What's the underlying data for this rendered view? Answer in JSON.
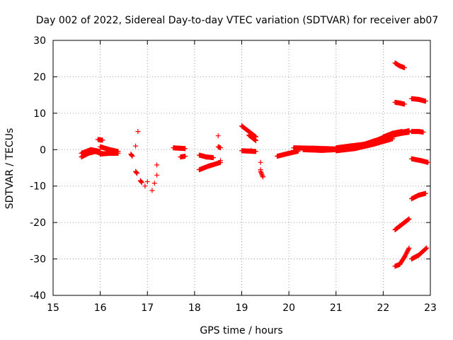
{
  "chart_data": {
    "type": "scatter",
    "title": "Day 002 of 2022, Sidereal Day-to-day VTEC variation (SDTVAR) for receiver ab07",
    "xlabel": "GPS time / hours",
    "ylabel": "SDTVAR / TECUs",
    "xlim": [
      15,
      23
    ],
    "ylim": [
      -40,
      30
    ],
    "xticks": [
      15,
      16,
      17,
      18,
      19,
      20,
      21,
      22,
      23
    ],
    "yticks": [
      -40,
      -30,
      -20,
      -10,
      0,
      10,
      20,
      30
    ],
    "grid": true,
    "marker": "+",
    "color": "#ff0000",
    "series": [
      {
        "name": "SDTVAR",
        "segments": [
          [
            [
              15.6,
              -2.0
            ],
            [
              15.75,
              -1.0
            ],
            [
              15.9,
              -0.5
            ],
            [
              16.0,
              -1.0
            ]
          ],
          [
            [
              15.6,
              -1.0
            ],
            [
              15.8,
              0.0
            ],
            [
              16.0,
              -0.5
            ]
          ],
          [
            [
              15.95,
              2.8
            ],
            [
              16.05,
              2.6
            ]
          ],
          [
            [
              16.0,
              0.8
            ],
            [
              16.2,
              0.0
            ],
            [
              16.38,
              -0.5
            ]
          ],
          [
            [
              16.0,
              -1.2
            ],
            [
              16.2,
              -1.0
            ],
            [
              16.38,
              -1.0
            ]
          ],
          [
            [
              16.65,
              -1.2
            ],
            [
              16.68,
              -1.8
            ]
          ],
          [
            [
              16.75,
              -6.0
            ],
            [
              16.78,
              -6.5
            ]
          ],
          [
            [
              16.85,
              -8.5
            ],
            [
              16.88,
              -9.0
            ]
          ],
          [
            [
              17.55,
              0.5
            ],
            [
              17.8,
              0.3
            ]
          ],
          [
            [
              17.7,
              -2.0
            ],
            [
              17.8,
              -1.8
            ]
          ],
          [
            [
              18.1,
              -5.5
            ],
            [
              18.3,
              -4.5
            ],
            [
              18.55,
              -3.5
            ]
          ],
          [
            [
              18.1,
              -1.5
            ],
            [
              18.25,
              -2.0
            ],
            [
              18.4,
              -2.2
            ]
          ],
          [
            [
              18.5,
              0.8
            ],
            [
              18.55,
              0.5
            ]
          ],
          [
            [
              19.0,
              6.5
            ],
            [
              19.15,
              5.0
            ],
            [
              19.3,
              3.5
            ]
          ],
          [
            [
              19.15,
              4.0
            ],
            [
              19.3,
              2.5
            ]
          ],
          [
            [
              19.0,
              -0.3
            ],
            [
              19.3,
              -0.5
            ]
          ],
          [
            [
              19.4,
              -6.0
            ],
            [
              19.45,
              -7.5
            ]
          ],
          [
            [
              19.75,
              -1.8
            ],
            [
              20.0,
              -1.0
            ],
            [
              20.2,
              -0.4
            ]
          ],
          [
            [
              20.1,
              0.5
            ],
            [
              20.5,
              0.4
            ],
            [
              21.0,
              0.2
            ]
          ],
          [
            [
              20.3,
              0.0
            ],
            [
              20.7,
              -0.2
            ],
            [
              21.0,
              0.0
            ]
          ],
          [
            [
              21.0,
              0.5
            ],
            [
              21.3,
              1.0
            ],
            [
              21.6,
              1.5
            ],
            [
              21.9,
              2.8
            ],
            [
              22.2,
              4.5
            ]
          ],
          [
            [
              21.0,
              -0.3
            ],
            [
              21.4,
              0.3
            ],
            [
              21.8,
              1.5
            ],
            [
              22.2,
              3.0
            ]
          ],
          [
            [
              22.0,
              2.8
            ],
            [
              22.2,
              3.8
            ],
            [
              22.4,
              4.8
            ],
            [
              22.55,
              5.2
            ]
          ],
          [
            [
              22.0,
              3.5
            ],
            [
              22.2,
              4.5
            ],
            [
              22.4,
              5.0
            ]
          ],
          [
            [
              22.2,
              4.0
            ],
            [
              22.4,
              4.5
            ],
            [
              22.55,
              4.8
            ]
          ],
          [
            [
              22.6,
              5.0
            ],
            [
              22.75,
              5.0
            ],
            [
              22.85,
              4.8
            ]
          ],
          [
            [
              22.25,
              23.8
            ],
            [
              22.35,
              23.0
            ],
            [
              22.45,
              22.5
            ]
          ],
          [
            [
              22.25,
              13.0
            ],
            [
              22.35,
              12.8
            ],
            [
              22.45,
              12.5
            ]
          ],
          [
            [
              22.6,
              14.0
            ],
            [
              22.75,
              13.8
            ],
            [
              22.9,
              13.3
            ]
          ],
          [
            [
              22.6,
              -2.5
            ],
            [
              22.8,
              -3.0
            ],
            [
              22.95,
              -3.5
            ]
          ],
          [
            [
              22.6,
              -13.5
            ],
            [
              22.75,
              -12.5
            ],
            [
              22.9,
              -12.0
            ]
          ],
          [
            [
              22.25,
              -22.0
            ],
            [
              22.35,
              -21.0
            ],
            [
              22.45,
              -20.0
            ],
            [
              22.55,
              -19.0
            ]
          ],
          [
            [
              22.25,
              -32.0
            ],
            [
              22.35,
              -31.5
            ],
            [
              22.45,
              -29.5
            ],
            [
              22.55,
              -27.0
            ]
          ],
          [
            [
              22.6,
              -30.0
            ],
            [
              22.75,
              -29.0
            ],
            [
              22.92,
              -27.0
            ]
          ]
        ],
        "points": [
          [
            16.8,
            5.0
          ],
          [
            16.75,
            1.0
          ],
          [
            16.95,
            -10.0
          ],
          [
            17.0,
            -8.8
          ],
          [
            17.1,
            -11.2
          ],
          [
            17.15,
            -9.2
          ],
          [
            17.2,
            -4.2
          ],
          [
            17.2,
            -7.0
          ],
          [
            18.5,
            3.8
          ],
          [
            18.55,
            -3.0
          ],
          [
            19.2,
            -0.2
          ],
          [
            19.4,
            -3.5
          ],
          [
            19.4,
            -5.5
          ]
        ]
      }
    ]
  }
}
